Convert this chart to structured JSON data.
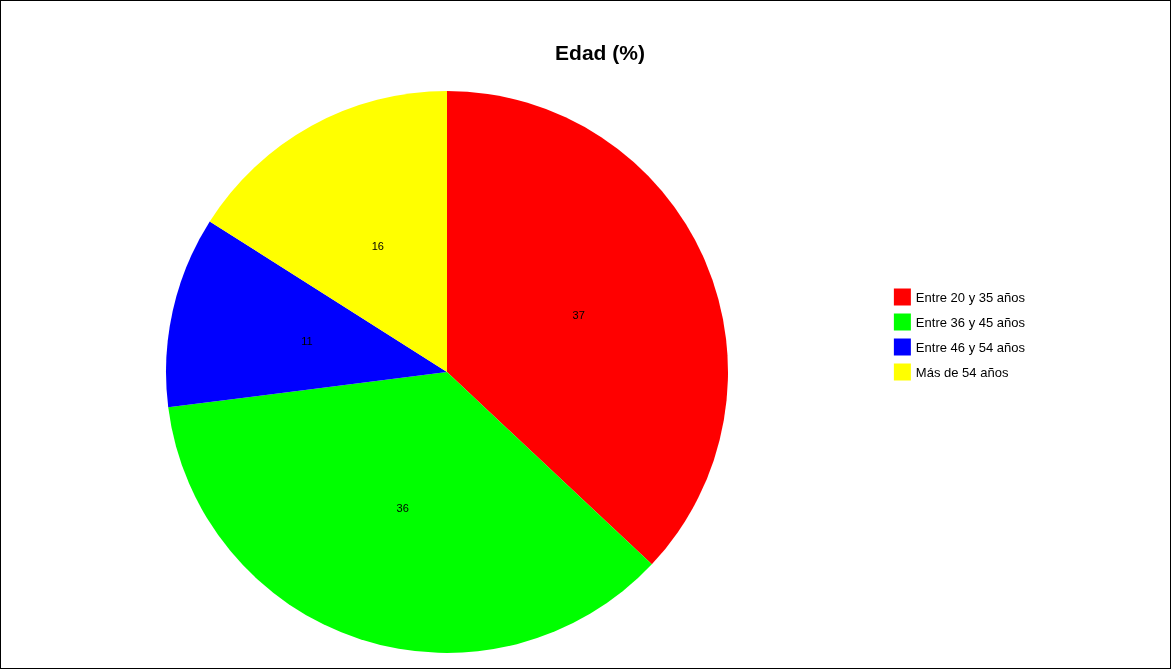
{
  "chart_data": {
    "type": "pie",
    "title": "Edad (%)",
    "categories": [
      "Entre 20 y 35 años",
      "Entre 36 y 45 años",
      "Entre 46 y 54 años",
      "Más de 54 años"
    ],
    "values": [
      37,
      36,
      11,
      16
    ],
    "colors": [
      "#ff0000",
      "#00ff00",
      "#0000ff",
      "#ffff00"
    ],
    "data_labels": true,
    "legend": "right"
  }
}
